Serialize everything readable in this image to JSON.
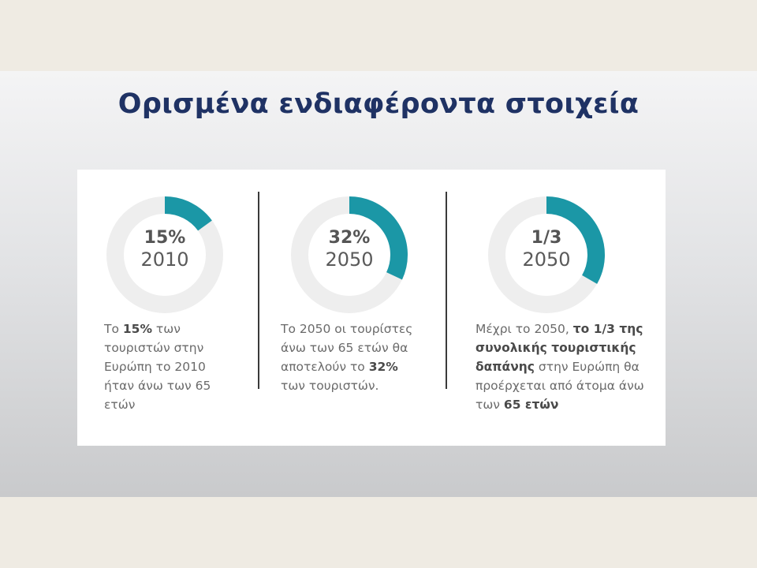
{
  "title": "Ορισμένα ενδιαφέροντα στοιχεία",
  "accent_color": "#1b97a6",
  "track_color": "#eeeeee",
  "stats": [
    {
      "value": "15%",
      "fraction": 0.15,
      "year": "2010",
      "text": [
        {
          "t": "Το ",
          "b": false
        },
        {
          "t": "15%",
          "b": true
        },
        {
          "t": " των τουριστών στην Ευρώπη το 2010 ήταν άνω των 65 ετών",
          "b": false
        }
      ]
    },
    {
      "value": "32%",
      "fraction": 0.32,
      "year": "2050",
      "text": [
        {
          "t": "Το 2050 οι τουρίστες άνω των 65 ετών θα αποτελούν το ",
          "b": false
        },
        {
          "t": "32%",
          "b": true
        },
        {
          "t": " των τουριστών.",
          "b": false
        }
      ]
    },
    {
      "value": "1/3",
      "fraction": 0.333,
      "year": "2050",
      "text": [
        {
          "t": "Μέχρι το 2050, ",
          "b": false
        },
        {
          "t": "το 1/3 της συνολικής τουριστικής δαπάνης",
          "b": true
        },
        {
          "t": " στην Ευρώπη θα προέρχεται από άτομα άνω των ",
          "b": false
        },
        {
          "t": "65 ετών",
          "b": true
        }
      ]
    }
  ]
}
